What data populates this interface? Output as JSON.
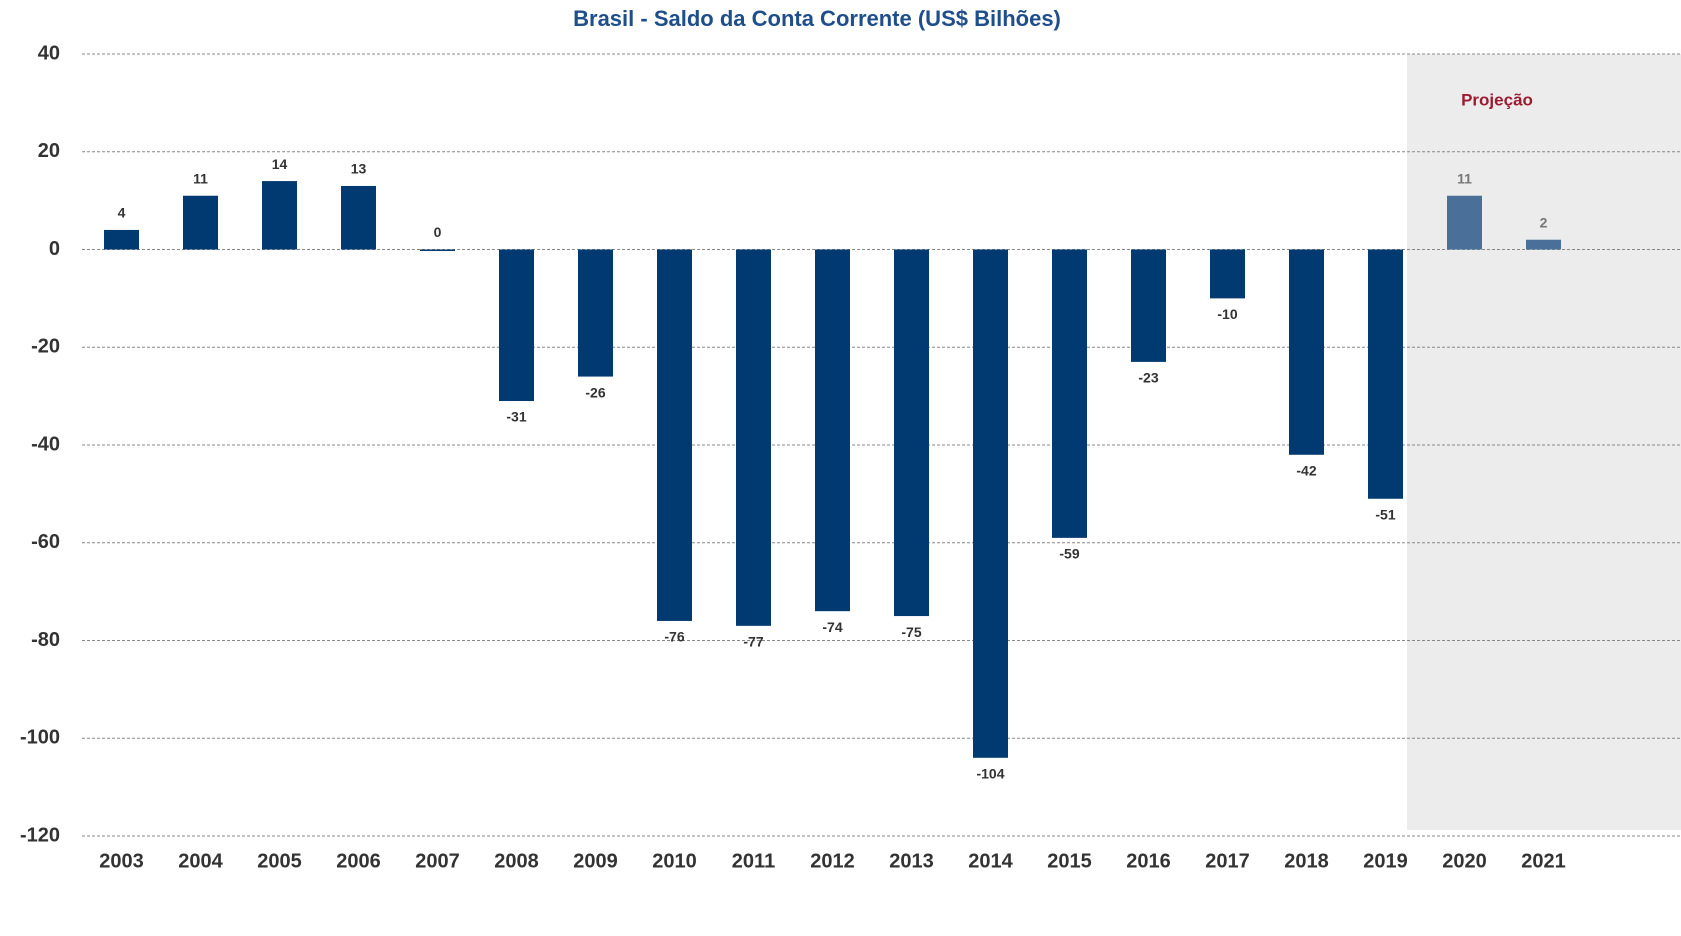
{
  "chart_data": {
    "type": "bar",
    "title": "Brasil - Saldo da Conta Corrente (US$ Bilhões)",
    "categories": [
      "2003",
      "2004",
      "2005",
      "2006",
      "2007",
      "2008",
      "2009",
      "2010",
      "2011",
      "2012",
      "2013",
      "2014",
      "2015",
      "2016",
      "2017",
      "2018",
      "2019",
      "2020",
      "2021"
    ],
    "values": [
      4,
      11,
      14,
      13,
      0,
      -31,
      -26,
      -76,
      -77,
      -74,
      -75,
      -104,
      -59,
      -23,
      -10,
      -42,
      -51,
      11,
      2
    ],
    "colors": [
      "#003a70",
      "#003a70",
      "#003a70",
      "#003a70",
      "#003a70",
      "#003a70",
      "#003a70",
      "#003a70",
      "#003a70",
      "#003a70",
      "#003a70",
      "#003a70",
      "#003a70",
      "#003a70",
      "#003a70",
      "#003a70",
      "#003a70",
      "#4a6f98",
      "#4a6f98"
    ],
    "ylim": [
      -120,
      40
    ],
    "yticks": [
      -120,
      -100,
      -80,
      -60,
      -40,
      -20,
      0,
      20,
      40
    ],
    "grid": true,
    "shaded_region": {
      "label": "Projeção",
      "from": "2020",
      "color": "#ececec"
    }
  }
}
